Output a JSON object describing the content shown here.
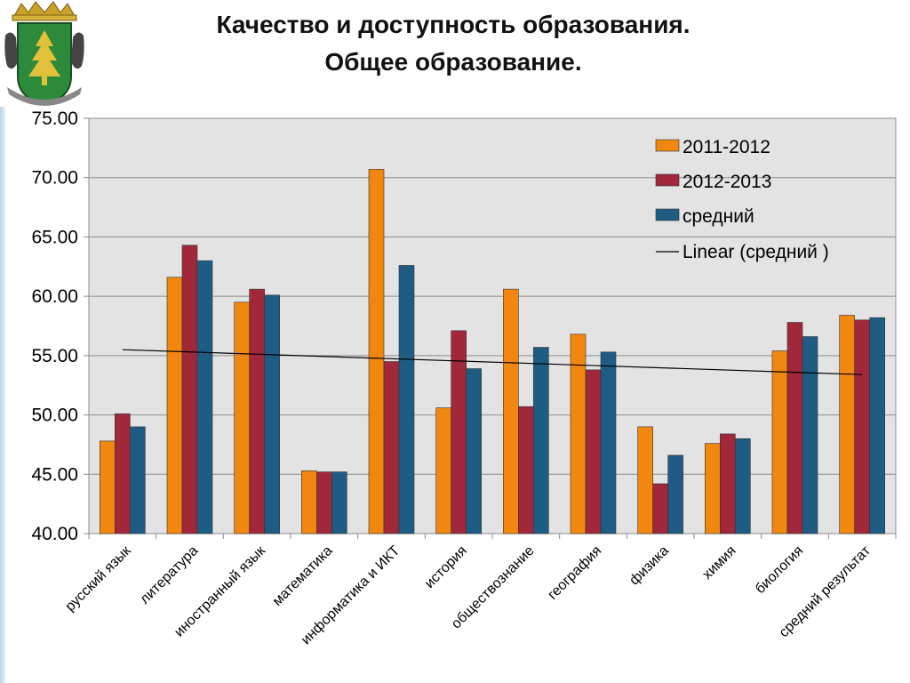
{
  "title": {
    "line1": "Качество и доступность образования.",
    "line2": "Общее образование."
  },
  "colors": {
    "series_2011": "#f2870f",
    "series_2012": "#a0283a",
    "series_avg": "#1e5c84",
    "plot_bg": "#e3e3e3",
    "trendline": "#000000"
  },
  "icons": {
    "emblem": "coat-of-arms-icon"
  },
  "chart_data": {
    "type": "bar",
    "categories": [
      "русский язык",
      "литература",
      "иностранный язык",
      "математика",
      "информатика и ИКТ",
      "история",
      "обществознание",
      "география",
      "физика",
      "химия",
      "биология",
      "средний результат"
    ],
    "series": [
      {
        "name": "2011-2012",
        "values": [
          47.8,
          61.6,
          59.5,
          45.3,
          70.7,
          50.6,
          60.6,
          56.8,
          49.0,
          47.6,
          55.4,
          58.4
        ]
      },
      {
        "name": "2012-2013",
        "values": [
          50.1,
          64.3,
          60.6,
          45.2,
          54.5,
          57.1,
          50.7,
          53.8,
          44.2,
          48.4,
          57.8,
          58.0
        ]
      },
      {
        "name": "средний",
        "values": [
          49.0,
          63.0,
          60.1,
          45.2,
          62.6,
          53.9,
          55.7,
          55.3,
          46.6,
          48.0,
          56.6,
          58.2
        ]
      }
    ],
    "trendline": {
      "name": "Linear (средний )",
      "start": 55.5,
      "end": 53.4
    },
    "ylim": [
      40,
      75
    ],
    "yticks": [
      "40.00",
      "45.00",
      "50.00",
      "55.00",
      "60.00",
      "65.00",
      "70.00",
      "75.00"
    ],
    "grid": true,
    "legend_position": "top-right",
    "xlabel": "",
    "ylabel": ""
  }
}
